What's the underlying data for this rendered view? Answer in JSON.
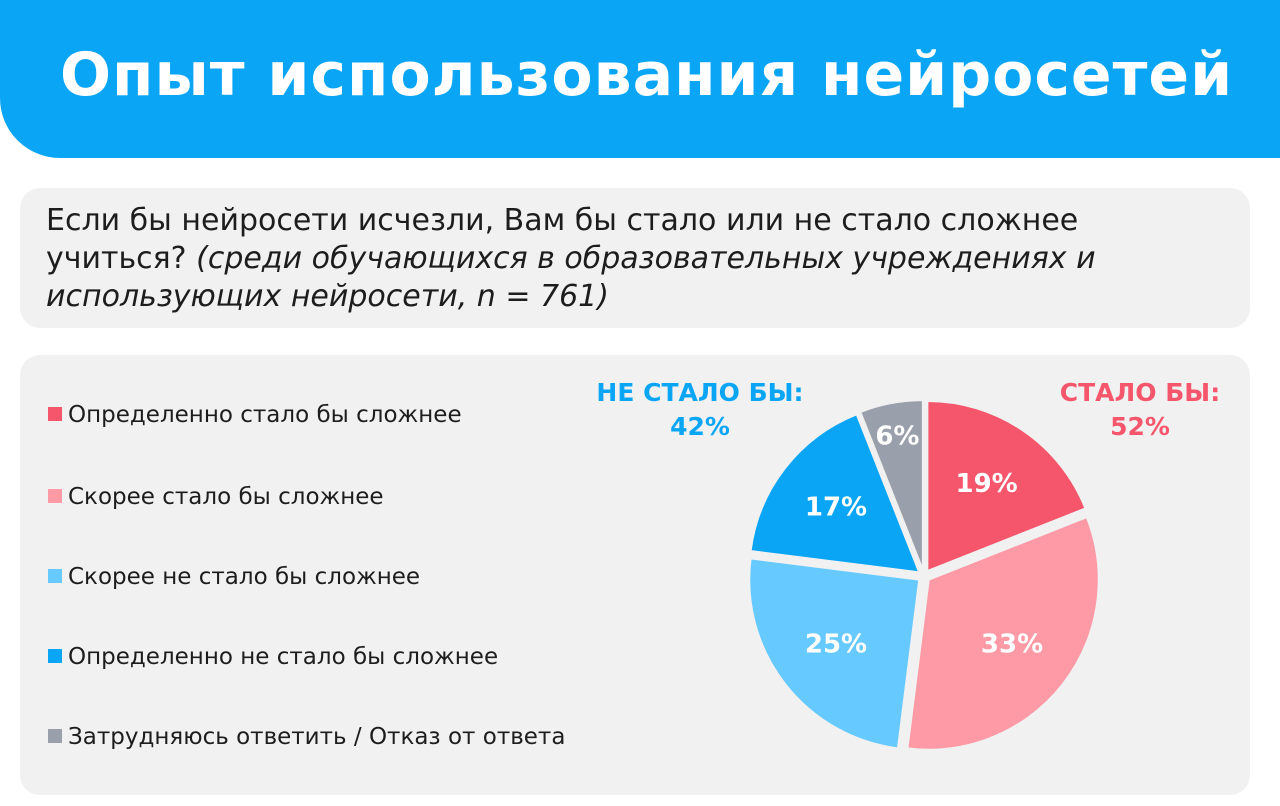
{
  "header": {
    "title": "Опыт использования нейросетей"
  },
  "question": {
    "main": "Если бы нейросети исчезли, Вам бы стало или не стало сложнее учиться?",
    "sub": "(среди обучающихся в образовательных учреждениях и использующих нейросети, n = 761)"
  },
  "groups": {
    "negative": {
      "label": "НЕ СТАЛО БЫ:",
      "value": "42%",
      "color": "#0aa6f5"
    },
    "positive": {
      "label": "СТАЛО БЫ:",
      "value": "52%",
      "color": "#f5566b"
    }
  },
  "chart_data": {
    "type": "pie",
    "start": "12 o'clock, clockwise",
    "slices": [
      {
        "label": "Определенно стало бы сложнее",
        "value": 19,
        "display": "19%",
        "color": "#f5566b"
      },
      {
        "label": "Скорее стало бы сложнее",
        "value": 33,
        "display": "33%",
        "color": "#fe9aa6"
      },
      {
        "label": "Скорее не стало бы сложнее",
        "value": 25,
        "display": "25%",
        "color": "#66c9ff"
      },
      {
        "label": "Определенно не стало бы сложнее",
        "value": 17,
        "display": "17%",
        "color": "#0aa6f5"
      },
      {
        "label": "Затрудняюсь ответить / Отказ от ответа",
        "value": 6,
        "display": "6%",
        "color": "#9aa0ab"
      }
    ]
  }
}
